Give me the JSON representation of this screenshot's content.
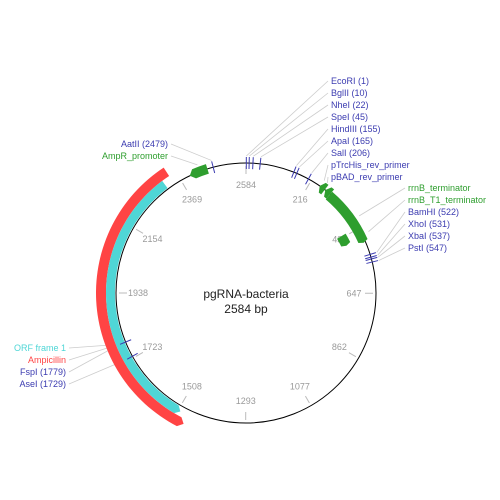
{
  "plasmid": {
    "name": "pgRNA-bacteria",
    "size_label": "2584 bp",
    "length": 2584
  },
  "colors": {
    "backbone": "#000000",
    "tick_text": "#9a9a9a",
    "enzyme": "#3b3bb0",
    "promoter": "#2e9e2e",
    "terminator": "#2e9e2e",
    "orf": "#4fd6d6",
    "resistance": "#ff4444",
    "connector": "#cccccc"
  },
  "ticks": [
    {
      "pos": 0,
      "label": "2584"
    },
    {
      "pos": 216,
      "label": "216"
    },
    {
      "pos": 432,
      "label": "432"
    },
    {
      "pos": 647,
      "label": "647"
    },
    {
      "pos": 862,
      "label": "862"
    },
    {
      "pos": 1077,
      "label": "1077"
    },
    {
      "pos": 1293,
      "label": "1293"
    },
    {
      "pos": 1508,
      "label": "1508"
    },
    {
      "pos": 1723,
      "label": "1723"
    },
    {
      "pos": 1938,
      "label": "1938"
    },
    {
      "pos": 2154,
      "label": "2154"
    },
    {
      "pos": 2369,
      "label": "2369"
    }
  ],
  "enzymes": [
    {
      "name": "EcoRI (1)",
      "pos": 1
    },
    {
      "name": "BglII (10)",
      "pos": 10
    },
    {
      "name": "NheI (22)",
      "pos": 22
    },
    {
      "name": "SpeI (45)",
      "pos": 45
    },
    {
      "name": "HindIII (155)",
      "pos": 155
    },
    {
      "name": "ApaI (165)",
      "pos": 165
    },
    {
      "name": "SalI (206)",
      "pos": 206
    },
    {
      "name": "BamHI (522)",
      "pos": 522
    },
    {
      "name": "XhoI (531)",
      "pos": 531
    },
    {
      "name": "XbaI (537)",
      "pos": 537
    },
    {
      "name": "PstI (547)",
      "pos": 547
    },
    {
      "name": "FspI (1779)",
      "pos": 1779
    },
    {
      "name": "AseI (1729)",
      "pos": 1729
    },
    {
      "name": "AatII (2479)",
      "pos": 2479
    }
  ],
  "labels": {
    "top_right": [
      {
        "text": "EcoRI (1)",
        "kind": "enzyme",
        "pos": 1
      },
      {
        "text": "BglII (10)",
        "kind": "enzyme",
        "pos": 10
      },
      {
        "text": "NheI (22)",
        "kind": "enzyme",
        "pos": 22
      },
      {
        "text": "SpeI (45)",
        "kind": "enzyme",
        "pos": 45
      },
      {
        "text": "HindIII (155)",
        "kind": "enzyme",
        "pos": 155
      },
      {
        "text": "ApaI (165)",
        "kind": "enzyme",
        "pos": 165
      },
      {
        "text": "SalI (206)",
        "kind": "enzyme",
        "pos": 206
      },
      {
        "text": "pTrcHis_rev_primer",
        "kind": "primer",
        "pos": 250
      },
      {
        "text": "pBAD_rev_primer",
        "kind": "primer",
        "pos": 262
      }
    ],
    "right": [
      {
        "text": "rrnB_terminator",
        "kind": "terminator",
        "pos": 400
      },
      {
        "text": "rrnB_T1_terminator",
        "kind": "terminator",
        "pos": 455
      },
      {
        "text": "BamHI (522)",
        "kind": "enzyme",
        "pos": 522
      },
      {
        "text": "XhoI (531)",
        "kind": "enzyme",
        "pos": 531
      },
      {
        "text": "XbaI (537)",
        "kind": "enzyme",
        "pos": 537
      },
      {
        "text": "PstI (547)",
        "kind": "enzyme",
        "pos": 547
      }
    ],
    "top_left": [
      {
        "text": "AatII (2479)",
        "kind": "enzyme",
        "pos": 2479
      },
      {
        "text": "AmpR_promoter",
        "kind": "promoter",
        "pos": 2435
      }
    ],
    "bottom_left": [
      {
        "text": "ORF frame 1",
        "kind": "orf",
        "pos": 1780
      },
      {
        "text": "Ampicillin",
        "kind": "resistance",
        "pos": 1780
      },
      {
        "text": "FspI (1779)",
        "kind": "enzyme",
        "pos": 1779
      },
      {
        "text": "AseI (1729)",
        "kind": "enzyme",
        "pos": 1729
      }
    ]
  },
  "features": [
    {
      "name": "Ampicillin",
      "type": "resistance",
      "start": 1475,
      "end": 2345,
      "direction": "reverse"
    },
    {
      "name": "ORF frame 1",
      "type": "orf",
      "start": 1500,
      "end": 2320,
      "direction": "reverse"
    },
    {
      "name": "AmpR_promoter",
      "type": "promoter",
      "start": 2400,
      "end": 2460,
      "direction": "reverse"
    },
    {
      "name": "pTrcHis_rev_primer",
      "type": "primer",
      "start": 248,
      "end": 268,
      "direction": "reverse"
    },
    {
      "name": "pBAD_rev_primer",
      "type": "primer",
      "start": 270,
      "end": 290,
      "direction": "reverse"
    },
    {
      "name": "rrnB_terminator",
      "type": "terminator",
      "start": 290,
      "end": 480,
      "direction": "forward"
    },
    {
      "name": "rrnB_T1_terminator",
      "type": "terminator",
      "start": 425,
      "end": 465,
      "direction": "forward"
    }
  ]
}
